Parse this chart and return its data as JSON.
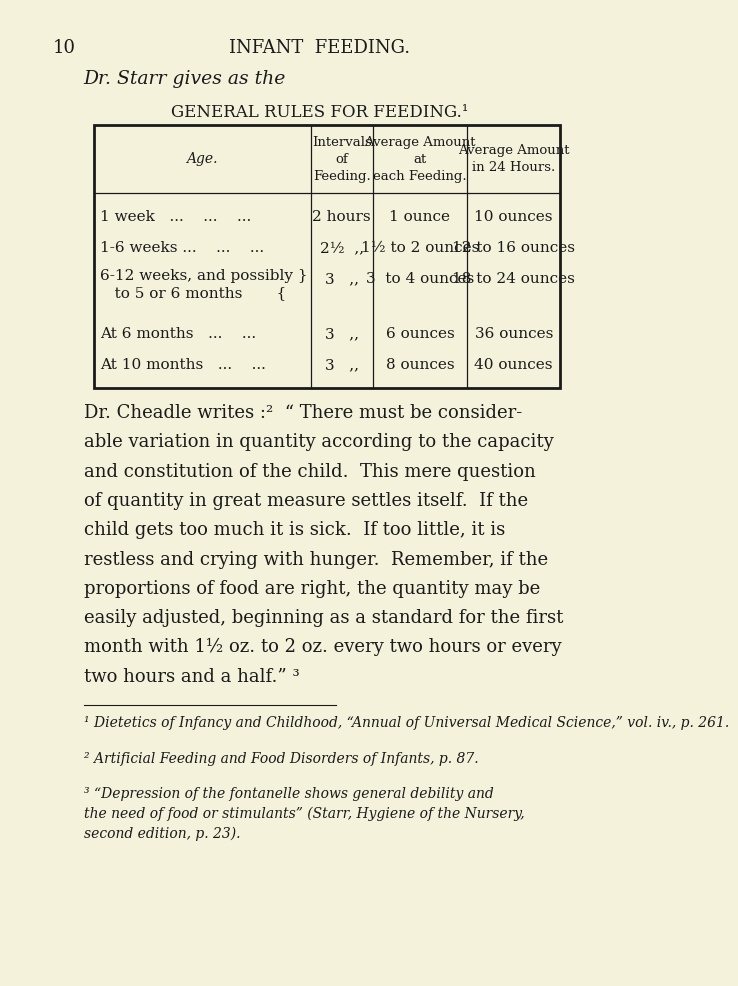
{
  "bg_color": "#f5f2dc",
  "text_color": "#1a1a1a",
  "page_number": "10",
  "header": "INFANT  FEEDING.",
  "intro_line": "Dr. Starr gives as the",
  "table_title": "GENERAL RULES FOR FEEDING.¹",
  "col_headers_age": "Age.",
  "col_headers_intervals": "Intervals\nof\nFeeding.",
  "col_headers_each": "Average Amount\nat\neach Feeding.",
  "col_headers_24h": "Average Amount\nin 24 Hours.",
  "row0": [
    "1 week   ...    ...    ...",
    "2 hours",
    "1 ounce",
    "10 ounces"
  ],
  "row1": [
    "1-6 weeks ...    ...    ...",
    "2½  ,,",
    "1½ to 2 ounces",
    "12 to 16 ounces"
  ],
  "row2_age1": "6-12 weeks, and possibly }",
  "row2_age2": "   to 5 or 6 months       {",
  "row2_interval": "3   ,,",
  "row2_each": "3  to 4 ounces",
  "row2_24h": "18 to 24 ounces",
  "row3": [
    "At 6 months   ...    ...",
    "3   ,,",
    "6 ounces",
    "36 ounces"
  ],
  "row4": [
    "At 10 months   ...    ...",
    "3   ,,",
    "8 ounces",
    "40 ounces"
  ],
  "cheadle_lines": [
    "Dr. Cheadle writes :²  “ There must be consider-",
    "able variation in quantity according to the capacity",
    "and constitution of the child.  This mere question",
    "of quantity in great measure settles itself.  If the",
    "child gets too much it is sick.  If too little, it is",
    "restless and crying with hunger.  Remember, if the",
    "proportions of food are right, the quantity may be",
    "easily adjusted, beginning as a standard for the first",
    "month with 1½ oz. to 2 oz. every two hours or every",
    "two hours and a half.” ³"
  ],
  "footnote1": "¹ Dietetics of Infancy and Childhood, “Annual of Universal Medical Science,” vol. iv., p. 261.",
  "footnote2": "² Artificial Feeding and Food Disorders of Infants, p. 87.",
  "footnote3_lines": [
    "³ “Depression of the fontanelle shows general debility and",
    "the need of food or stimulants” (Starr, Hygiene of the Nursery,",
    "second edition, p. 23)."
  ]
}
